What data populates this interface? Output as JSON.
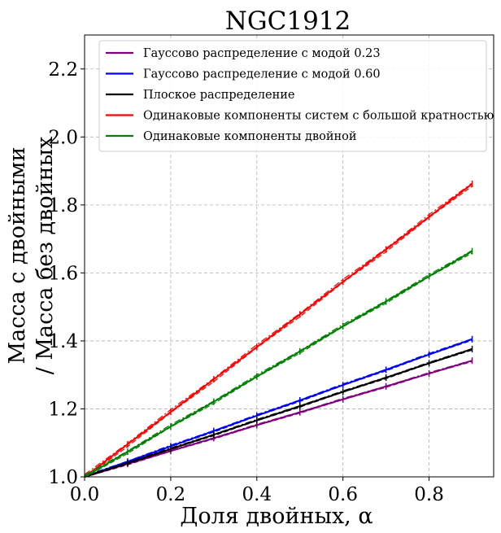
{
  "chart_data": {
    "type": "line",
    "title": "NGC1912",
    "xlabel": "Доля двойных, α",
    "ylabel_line1": "Масса с двойными",
    "ylabel_line2": "/ Масса без двойных",
    "xlim": [
      0.0,
      0.95
    ],
    "ylim": [
      1.0,
      2.3
    ],
    "xticks": [
      0.0,
      0.2,
      0.4,
      0.6,
      0.8
    ],
    "yticks": [
      1.0,
      1.2,
      1.4,
      1.6,
      1.8,
      2.0,
      2.2
    ],
    "xtick_labels": [
      "0.0",
      "0.2",
      "0.4",
      "0.6",
      "0.8"
    ],
    "ytick_labels": [
      "1.0",
      "1.2",
      "1.4",
      "1.6",
      "1.8",
      "2.0",
      "2.2"
    ],
    "grid": true,
    "legend_position": "top-right",
    "series": [
      {
        "name": "Гауссово распределение с модой 0.23",
        "color": "#800080",
        "x": [
          0.0,
          0.1,
          0.2,
          0.3,
          0.4,
          0.5,
          0.6,
          0.7,
          0.8,
          0.9
        ],
        "y": [
          1.0,
          1.038,
          1.076,
          1.114,
          1.152,
          1.19,
          1.228,
          1.266,
          1.304,
          1.342
        ]
      },
      {
        "name": "Гауссово распределение с модой 0.60",
        "color": "#0000ff",
        "x": [
          0.0,
          0.1,
          0.2,
          0.3,
          0.4,
          0.5,
          0.6,
          0.7,
          0.8,
          0.9
        ],
        "y": [
          1.0,
          1.045,
          1.09,
          1.135,
          1.18,
          1.225,
          1.27,
          1.315,
          1.36,
          1.405
        ]
      },
      {
        "name": "Плоское распределение",
        "color": "#000000",
        "x": [
          0.0,
          0.1,
          0.2,
          0.3,
          0.4,
          0.5,
          0.6,
          0.7,
          0.8,
          0.9
        ],
        "y": [
          1.0,
          1.041,
          1.082,
          1.124,
          1.166,
          1.208,
          1.25,
          1.292,
          1.334,
          1.376
        ]
      },
      {
        "name": "Одинаковые компоненты систем с большой кратностью",
        "color": "#ff0000",
        "x": [
          0.0,
          0.1,
          0.2,
          0.3,
          0.4,
          0.5,
          0.6,
          0.7,
          0.8,
          0.9
        ],
        "y": [
          1.0,
          1.096,
          1.191,
          1.287,
          1.382,
          1.478,
          1.574,
          1.669,
          1.765,
          1.862
        ]
      },
      {
        "name": "Одинаковые компоненты двойной",
        "color": "#008000",
        "x": [
          0.0,
          0.1,
          0.2,
          0.3,
          0.4,
          0.5,
          0.6,
          0.7,
          0.8,
          0.9
        ],
        "y": [
          1.0,
          1.074,
          1.148,
          1.221,
          1.295,
          1.369,
          1.443,
          1.516,
          1.59,
          1.664
        ]
      }
    ]
  }
}
